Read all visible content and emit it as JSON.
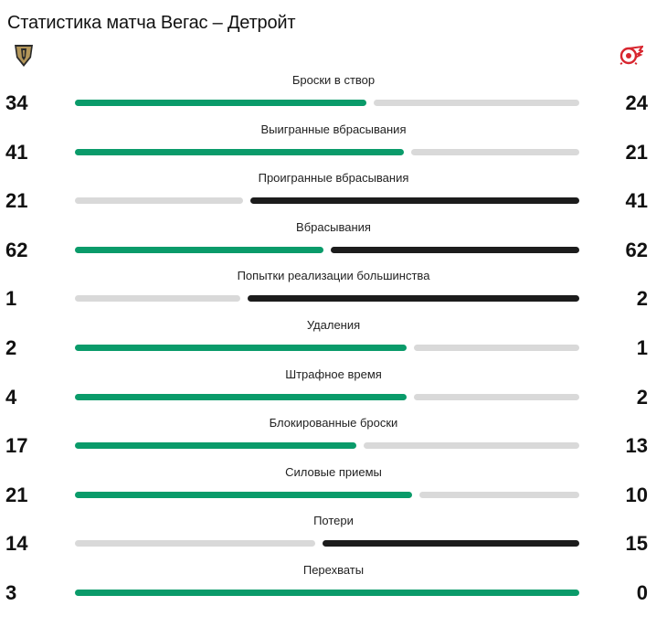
{
  "header": {
    "title": "Статистика матча Вегас – Детройт"
  },
  "teams": {
    "home_logo_icon": "vegas-golden-knights-logo-icon",
    "away_logo_icon": "detroit-red-wings-logo-icon"
  },
  "colors": {
    "leader_home": "#0a9b6a",
    "leader_away": "#1c1c1c",
    "trailing": "#d9d9d9"
  },
  "stats": [
    {
      "label": "Броски в створ",
      "home": "34",
      "away": "24",
      "home_value": 34,
      "away_value": 24
    },
    {
      "label": "Выигранные вбрасывания",
      "home": "41",
      "away": "21",
      "home_value": 41,
      "away_value": 21
    },
    {
      "label": "Проигранные вбрасывания",
      "home": "21",
      "away": "41",
      "home_value": 21,
      "away_value": 41
    },
    {
      "label": "Вбрасывания",
      "home": "62",
      "away": "62",
      "home_value": 62,
      "away_value": 62
    },
    {
      "label": "Попытки реализации большинства",
      "home": "1",
      "away": "2",
      "home_value": 1,
      "away_value": 2
    },
    {
      "label": "Удаления",
      "home": "2",
      "away": "1",
      "home_value": 2,
      "away_value": 1
    },
    {
      "label": "Штрафное время",
      "home": "4",
      "away": "2",
      "home_value": 4,
      "away_value": 2
    },
    {
      "label": "Блокированные броски",
      "home": "17",
      "away": "13",
      "home_value": 17,
      "away_value": 13
    },
    {
      "label": "Силовые приемы",
      "home": "21",
      "away": "10",
      "home_value": 21,
      "away_value": 10
    },
    {
      "label": "Потери",
      "home": "14",
      "away": "15",
      "home_value": 14,
      "away_value": 15
    },
    {
      "label": "Перехваты",
      "home": "3",
      "away": "0",
      "home_value": 3,
      "away_value": 0
    }
  ]
}
